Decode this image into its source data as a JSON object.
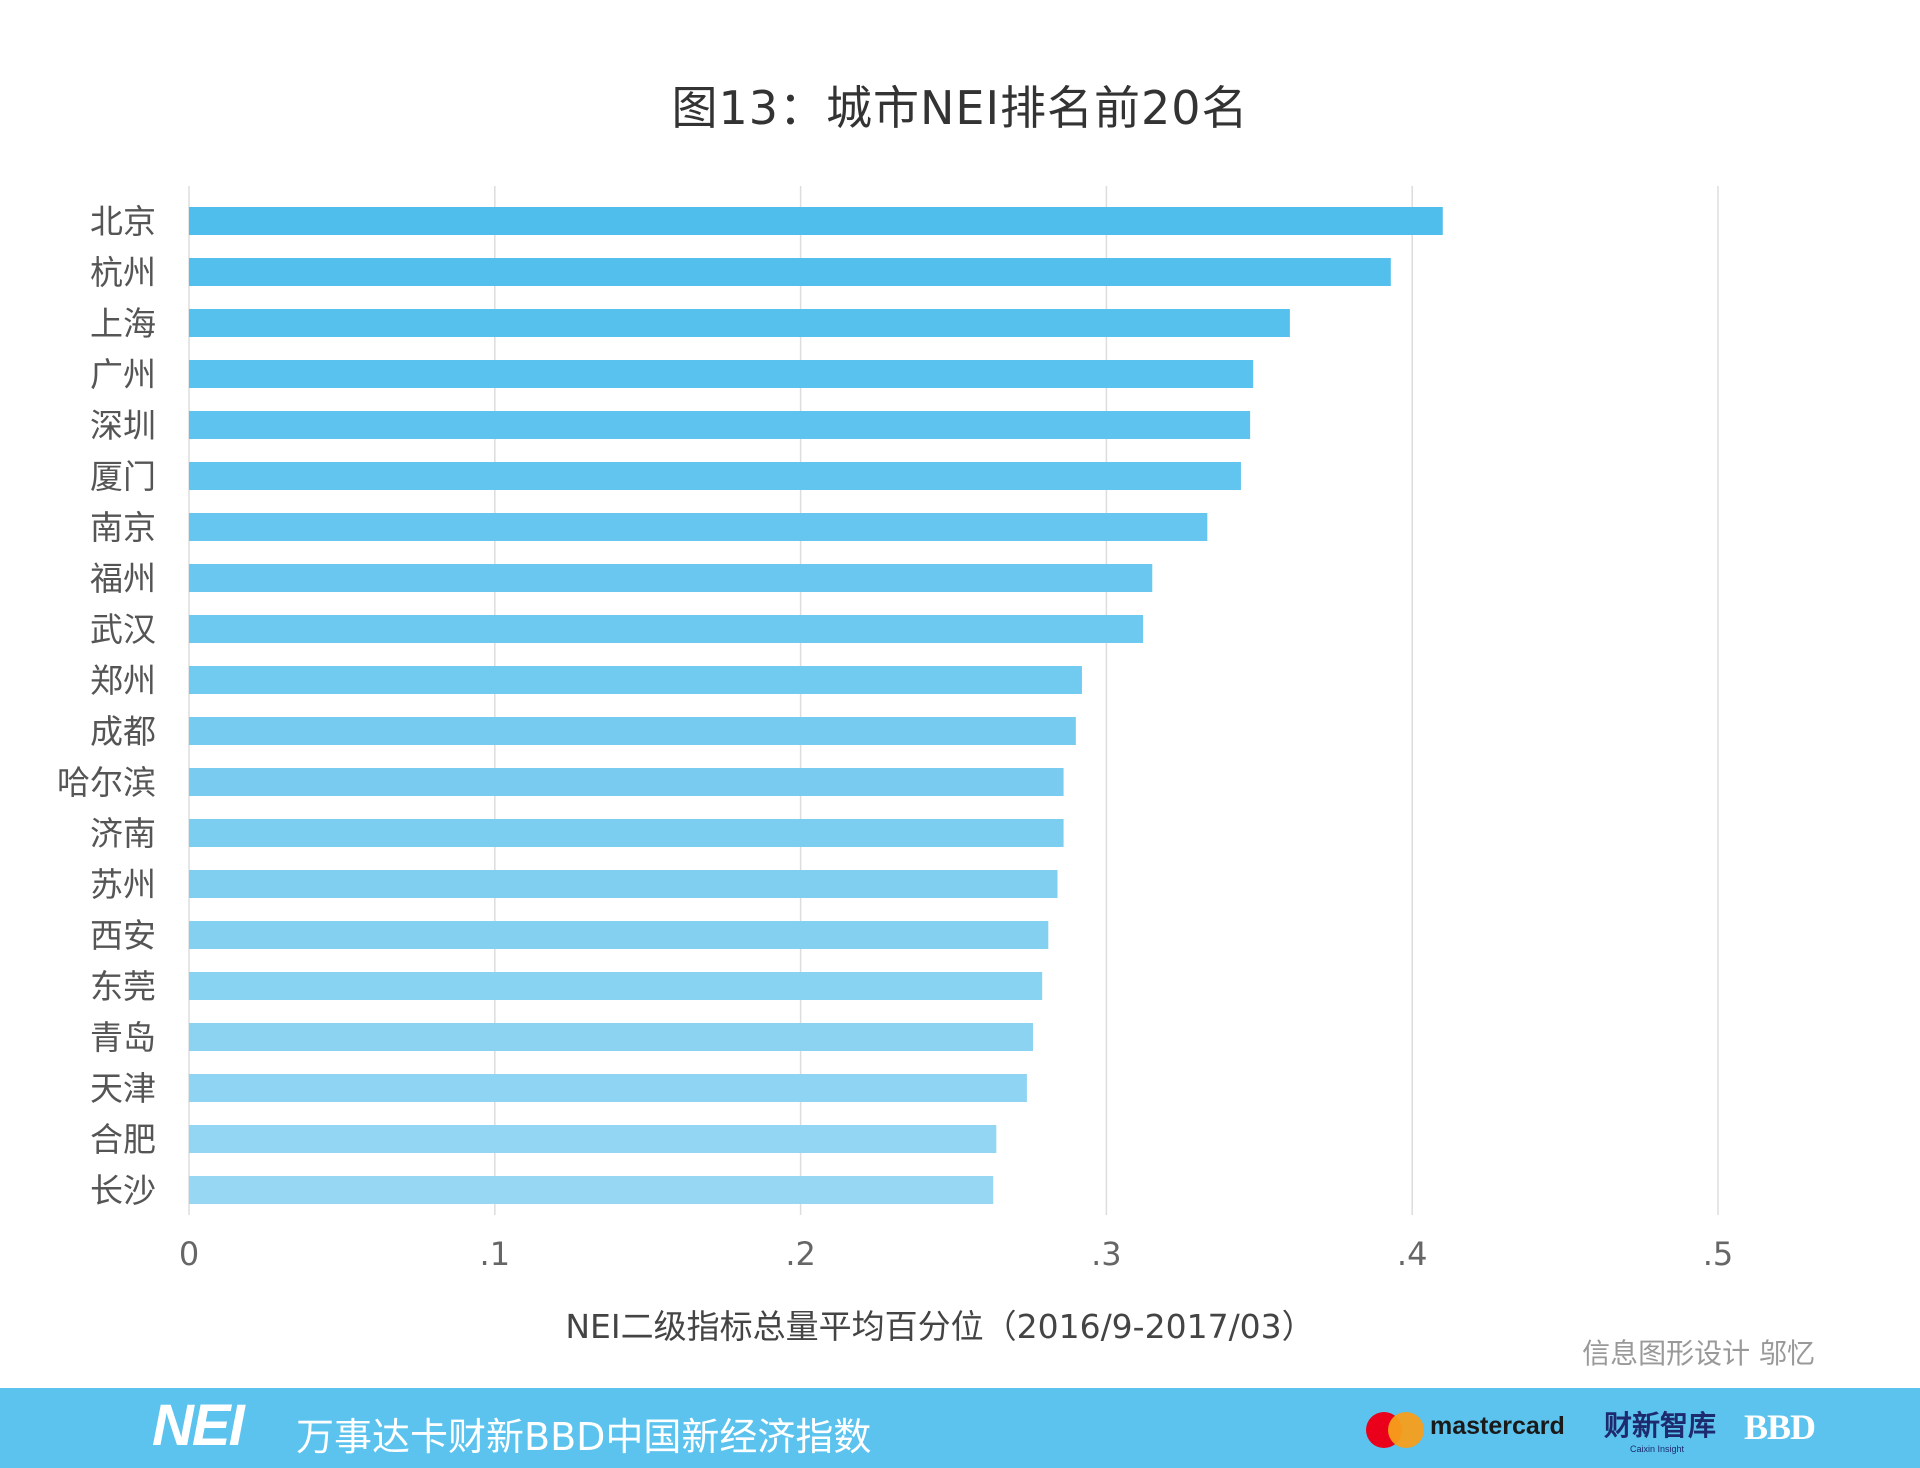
{
  "chart_data": {
    "type": "bar",
    "orientation": "horizontal",
    "title": "图13：城市NEI排名前20名",
    "xlabel": "NEI二级指标总量平均百分位（2016/9-2017/03）",
    "ylabel": "",
    "categories": [
      "北京",
      "杭州",
      "上海",
      "广州",
      "深圳",
      "厦门",
      "南京",
      "福州",
      "武汉",
      "郑州",
      "成都",
      "哈尔滨",
      "济南",
      "苏州",
      "西安",
      "东莞",
      "青岛",
      "天津",
      "合肥",
      "长沙"
    ],
    "values": [
      0.41,
      0.393,
      0.36,
      0.348,
      0.347,
      0.344,
      0.333,
      0.315,
      0.312,
      0.292,
      0.29,
      0.286,
      0.286,
      0.284,
      0.281,
      0.279,
      0.276,
      0.274,
      0.264,
      0.263
    ],
    "xlim": [
      0,
      0.5
    ],
    "xticks": [
      "0",
      ".1",
      ".2",
      ".3",
      ".4",
      ".5"
    ],
    "grid": true,
    "legend": "none",
    "bar_color_start": "#4fbeed",
    "bar_color_end": "#97d7f3"
  },
  "credit": "信息图形设计 邬忆",
  "footer": {
    "logo": "NEI",
    "index_name": "万事达卡财新BBD中国新经济指数",
    "mastercard": "mastercard",
    "caixin": "财新智库",
    "caixin_sub": "Caixin Insight",
    "bbd": "BBD",
    "background": "#5bc3ee"
  }
}
